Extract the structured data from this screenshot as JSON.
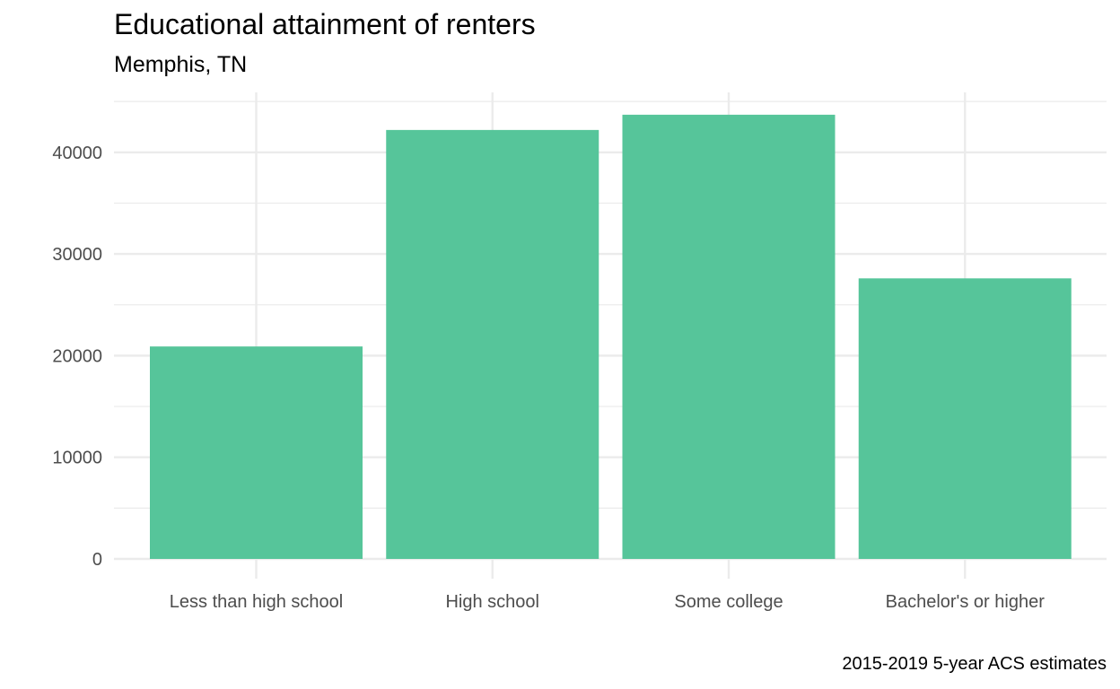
{
  "chart_data": {
    "type": "bar",
    "title": "Educational attainment of renters",
    "subtitle": "Memphis, TN",
    "caption": "2015-2019 5-year ACS estimates",
    "xlabel": "",
    "ylabel": "",
    "categories": [
      "Less than high school",
      "High school",
      "Some college",
      "Bachelor's or higher"
    ],
    "values": [
      20900,
      42200,
      43700,
      27600
    ],
    "ylim": [
      0,
      46000
    ],
    "yticks": [
      0,
      10000,
      20000,
      30000,
      40000
    ],
    "ytick_labels": [
      "0",
      "10000",
      "20000",
      "30000",
      "40000"
    ],
    "grid": true,
    "legend": "none",
    "bar_color": "#56c59a",
    "grid_color": "#ebebeb"
  }
}
